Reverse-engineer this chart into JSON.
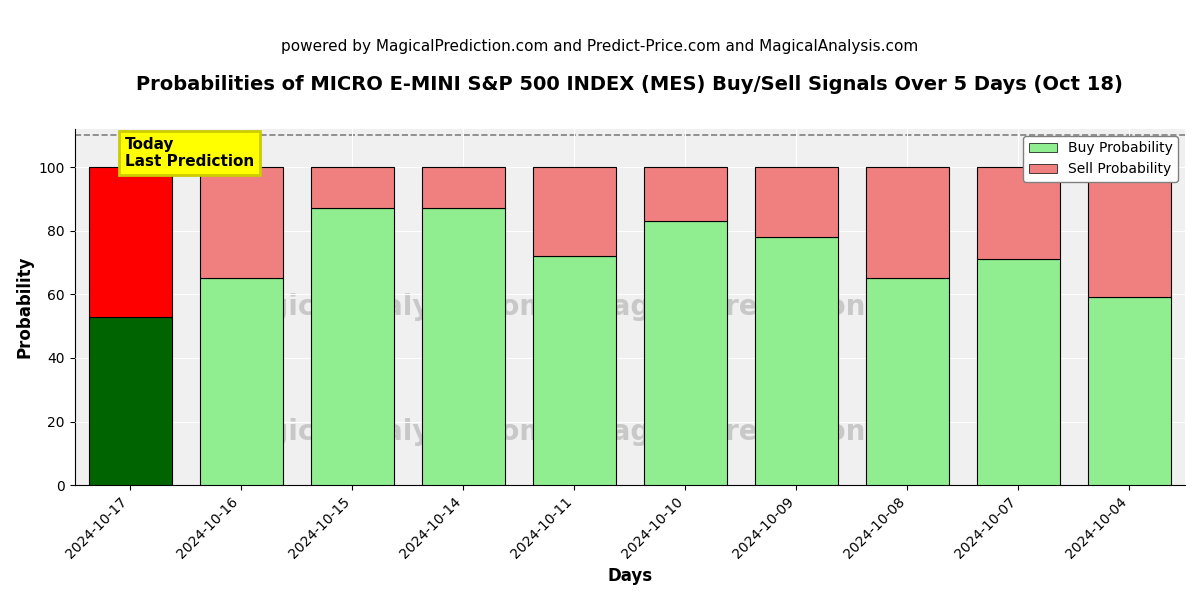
{
  "title": "Probabilities of MICRO E-MINI S&P 500 INDEX (MES) Buy/Sell Signals Over 5 Days (Oct 18)",
  "subtitle": "powered by MagicalPrediction.com and Predict-Price.com and MagicalAnalysis.com",
  "xlabel": "Days",
  "ylabel": "Probability",
  "categories": [
    "2024-10-17",
    "2024-10-16",
    "2024-10-15",
    "2024-10-14",
    "2024-10-11",
    "2024-10-10",
    "2024-10-09",
    "2024-10-08",
    "2024-10-07",
    "2024-10-04"
  ],
  "buy_values": [
    53,
    65,
    87,
    87,
    72,
    83,
    78,
    65,
    71,
    59
  ],
  "sell_values": [
    47,
    35,
    13,
    13,
    28,
    17,
    22,
    35,
    29,
    41
  ],
  "today_buy_color": "#006400",
  "today_sell_color": "#ff0000",
  "buy_color": "#90ee90",
  "sell_color": "#f08080",
  "ylim": [
    0,
    112
  ],
  "yticks": [
    0,
    20,
    40,
    60,
    80,
    100
  ],
  "dashed_line_y": 110,
  "annotation_text": "Today\nLast Prediction",
  "annotation_bg": "#ffff00",
  "legend_buy": "Buy Probability",
  "legend_sell": "Sell Probability",
  "bar_width": 0.75,
  "title_fontsize": 14,
  "subtitle_fontsize": 11,
  "axis_label_fontsize": 12,
  "tick_fontsize": 10,
  "plot_bg_color": "#f0f0f0"
}
